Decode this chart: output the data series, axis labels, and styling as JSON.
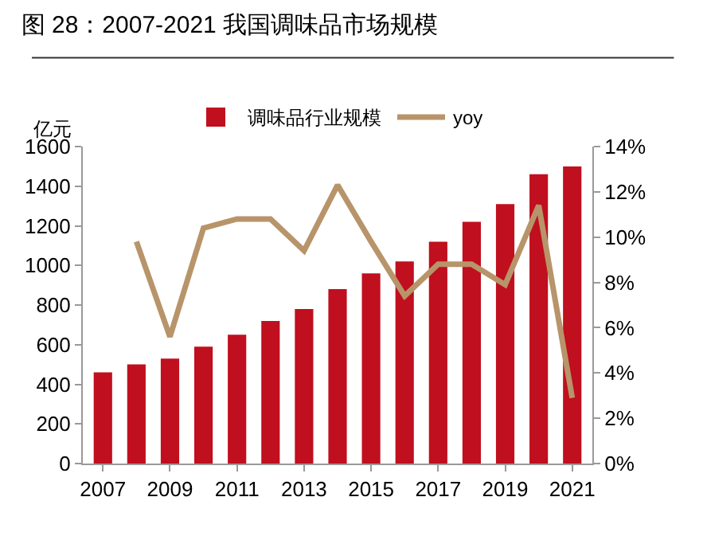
{
  "chart_data": {
    "type": "bar",
    "title": "图 28：2007-2021 我国调味品市场规模",
    "ylabel": "亿元",
    "x": [
      2007,
      2008,
      2009,
      2010,
      2011,
      2012,
      2013,
      2014,
      2015,
      2016,
      2017,
      2018,
      2019,
      2020,
      2021
    ],
    "series": [
      {
        "name": "调味品行业规模",
        "color": "#c00f1e",
        "values": [
          460,
          500,
          530,
          590,
          650,
          720,
          780,
          880,
          960,
          1020,
          1120,
          1220,
          1310,
          1460,
          1500
        ]
      },
      {
        "name": "yoy",
        "type": "line",
        "axis": "y2",
        "color": "#b8946a",
        "values": [
          null,
          9.8,
          5.6,
          10.4,
          10.8,
          10.8,
          9.4,
          12.3,
          9.8,
          7.4,
          8.8,
          8.8,
          7.9,
          11.4,
          2.9
        ]
      }
    ],
    "xlim": [
      2006.4,
      2021.6
    ],
    "xticks": [
      2007,
      2009,
      2011,
      2013,
      2015,
      2017,
      2019,
      2021
    ],
    "ylim": [
      0,
      1600
    ],
    "yticks": [
      0,
      200,
      400,
      600,
      800,
      1000,
      1200,
      1400,
      1600
    ],
    "y2lim": [
      0,
      14
    ],
    "y2ticks": [
      {
        "value": 0,
        "label": "0%"
      },
      {
        "value": 2,
        "label": "2%"
      },
      {
        "value": 4,
        "label": "4%"
      },
      {
        "value": 6,
        "label": "6%"
      },
      {
        "value": 8,
        "label": "8%"
      },
      {
        "value": 10,
        "label": "10%"
      },
      {
        "value": 12,
        "label": "12%"
      },
      {
        "value": 14,
        "label": "14%"
      }
    ],
    "legend": "top",
    "marker": "none",
    "line_style": "solid"
  }
}
